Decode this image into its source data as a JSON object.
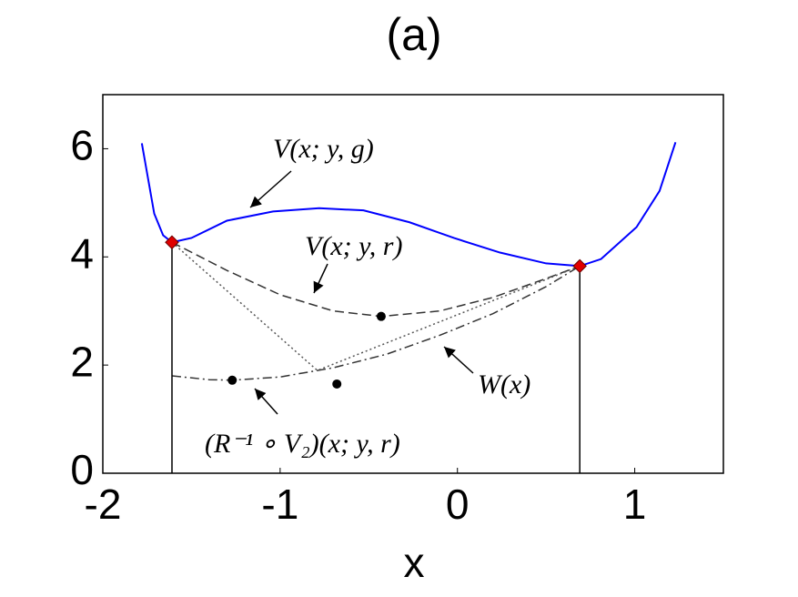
{
  "chart_data": {
    "type": "line",
    "title": "(a)",
    "xlabel": "x",
    "xlim": [
      -2,
      1.5
    ],
    "ylim": [
      0,
      7
    ],
    "xticks": [
      -2,
      -1,
      0,
      1
    ],
    "yticks": [
      0,
      2,
      4,
      6
    ],
    "series": [
      {
        "color": "#0000ff",
        "style": "solid",
        "x": [
          -1.78,
          -1.71,
          -1.66,
          -1.61,
          -1.5,
          -1.3,
          -1.04,
          -0.78,
          -0.53,
          -0.27,
          -0.02,
          0.24,
          0.5,
          0.69,
          0.81,
          1.01,
          1.14,
          1.23
        ],
        "values": [
          6.1,
          4.8,
          4.4,
          4.27,
          4.35,
          4.67,
          4.84,
          4.9,
          4.86,
          4.64,
          4.35,
          4.08,
          3.88,
          3.83,
          3.96,
          4.55,
          5.22,
          6.12
        ]
      },
      {
        "color": "#333333",
        "style": "dashed",
        "x": [
          -1.61,
          -1.3,
          -1.0,
          -0.7,
          -0.43,
          -0.1,
          0.2,
          0.5,
          0.69
        ],
        "values": [
          4.27,
          3.75,
          3.3,
          3.0,
          2.9,
          3.0,
          3.25,
          3.6,
          3.83
        ]
      },
      {
        "color": "#333333",
        "style": "dashdot",
        "x": [
          -1.61,
          -1.4,
          -1.27,
          -1.0,
          -0.7,
          -0.4,
          -0.1,
          0.2,
          0.5,
          0.69
        ],
        "values": [
          1.8,
          1.73,
          1.72,
          1.78,
          1.95,
          2.2,
          2.55,
          2.95,
          3.45,
          3.83
        ]
      },
      {
        "color": "#555555",
        "style": "dotted",
        "x": [
          -1.61,
          -0.79,
          0.69
        ],
        "values": [
          4.27,
          1.9,
          3.83
        ]
      }
    ],
    "points": {
      "color": "#000000",
      "x": [
        -0.43,
        -1.27,
        -0.68
      ],
      "values": [
        2.9,
        1.72,
        1.65
      ]
    },
    "highlight_points": {
      "color": "#e00000",
      "x": [
        -1.61,
        0.69
      ],
      "values": [
        4.27,
        3.83
      ]
    },
    "annotations": [
      "V(x; y, g)",
      "V(x; y, r)",
      "W(x)",
      "(R⁻¹ ∘ V₂)(x; y, r)"
    ]
  }
}
